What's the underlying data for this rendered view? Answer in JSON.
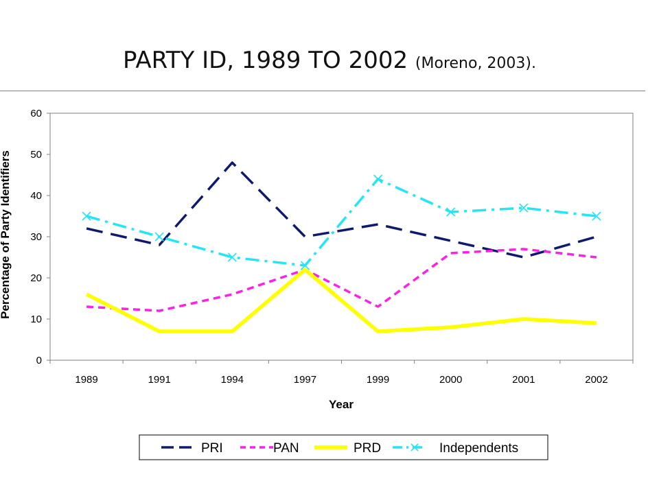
{
  "title": {
    "main": "PARTY ID, 1989 TO 2002",
    "source": "(Moreno, 2003)."
  },
  "chart_data": {
    "type": "line",
    "categories": [
      "1989",
      "1991",
      "1994",
      "1997",
      "1999",
      "2000",
      "2001",
      "2002"
    ],
    "xlabel": "Year",
    "ylabel": "Percentage of Party Identifiers",
    "ylim": [
      0,
      60
    ],
    "yticks": [
      0,
      10,
      20,
      30,
      40,
      50,
      60
    ],
    "grid": false,
    "legend_position": "bottom",
    "series": [
      {
        "name": "PRI",
        "color": "#0d1b6e",
        "style": "long-dash",
        "marker": "none",
        "values": [
          32,
          28,
          48,
          30,
          33,
          29,
          25,
          30
        ]
      },
      {
        "name": "PAN",
        "color": "#ff1fe8",
        "style": "short-dash",
        "marker": "none",
        "values": [
          13,
          12,
          16,
          22,
          13,
          26,
          27,
          25
        ]
      },
      {
        "name": "PRD",
        "color": "#ffff00",
        "style": "solid",
        "marker": "none",
        "values": [
          16,
          7,
          7,
          22,
          7,
          8,
          10,
          9
        ]
      },
      {
        "name": "Independents",
        "color": "#22e6f5",
        "style": "dash-dot",
        "marker": "x",
        "values": [
          35,
          30,
          25,
          23,
          44,
          36,
          37,
          35
        ]
      }
    ]
  }
}
